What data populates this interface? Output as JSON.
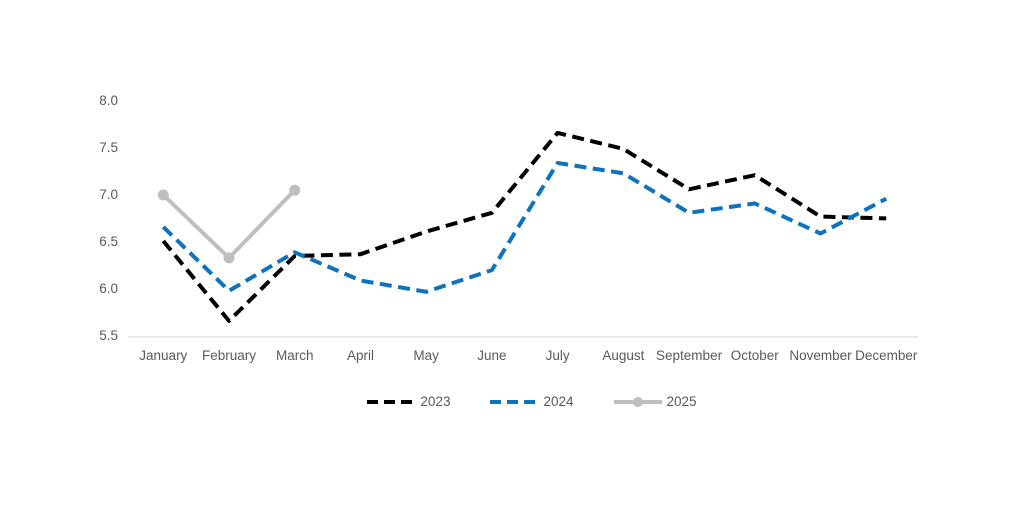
{
  "chart_data": {
    "type": "line",
    "title": "",
    "xlabel": "",
    "ylabel": "",
    "categories": [
      "January",
      "February",
      "March",
      "April",
      "May",
      "June",
      "July",
      "August",
      "September",
      "October",
      "November",
      "December"
    ],
    "series": [
      {
        "name": "2023",
        "color": "#000000",
        "style": "dashed",
        "values": [
          6.5,
          5.65,
          6.34,
          6.36,
          6.6,
          6.8,
          7.65,
          7.48,
          7.05,
          7.2,
          6.76,
          6.74
        ]
      },
      {
        "name": "2024",
        "color": "#0e72bf",
        "style": "dashed",
        "values": [
          6.65,
          5.97,
          6.38,
          6.08,
          5.96,
          6.19,
          7.33,
          7.22,
          6.8,
          6.9,
          6.58,
          6.95
        ]
      },
      {
        "name": "2025",
        "color": "#bfbfbf",
        "style": "solid-marker",
        "values": [
          6.99,
          6.32,
          7.04,
          null,
          null,
          null,
          null,
          null,
          null,
          null,
          null,
          null
        ]
      }
    ],
    "ylim": [
      5.5,
      8.0
    ],
    "ytick_step": 0.5,
    "yticks": [
      "8.0",
      "7.5",
      "7.0",
      "6.5",
      "6.0",
      "5.5"
    ],
    "grid": false,
    "legend_position": "bottom",
    "axis_color": "#d9d9d9",
    "text_color": "#595959"
  }
}
